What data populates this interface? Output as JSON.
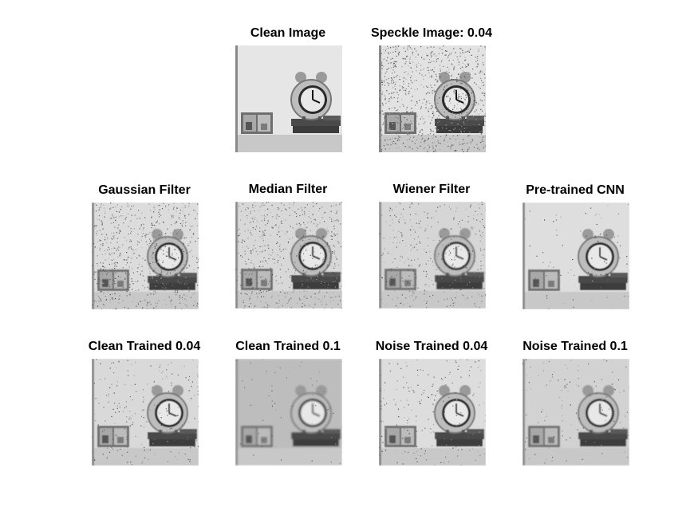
{
  "figure": {
    "panels": [
      {
        "title": "Clean Image",
        "style": "clean"
      },
      {
        "title": "Speckle Image: 0.04",
        "style": "speckle"
      },
      {
        "title": "Gaussian Filter",
        "style": "gaussian"
      },
      {
        "title": "Median Filter",
        "style": "median"
      },
      {
        "title": "Wiener Filter",
        "style": "wiener"
      },
      {
        "title": "Pre-trained CNN",
        "style": "cnn"
      },
      {
        "title": "Clean Trained 0.04",
        "style": "clean004"
      },
      {
        "title": "Clean Trained 0.1",
        "style": "clean01"
      },
      {
        "title": "Noise Trained 0.04",
        "style": "noise004"
      },
      {
        "title": "Noise Trained 0.1",
        "style": "noise01"
      }
    ]
  },
  "colors": {
    "background": "#ffffff",
    "title_text": "#000000"
  }
}
